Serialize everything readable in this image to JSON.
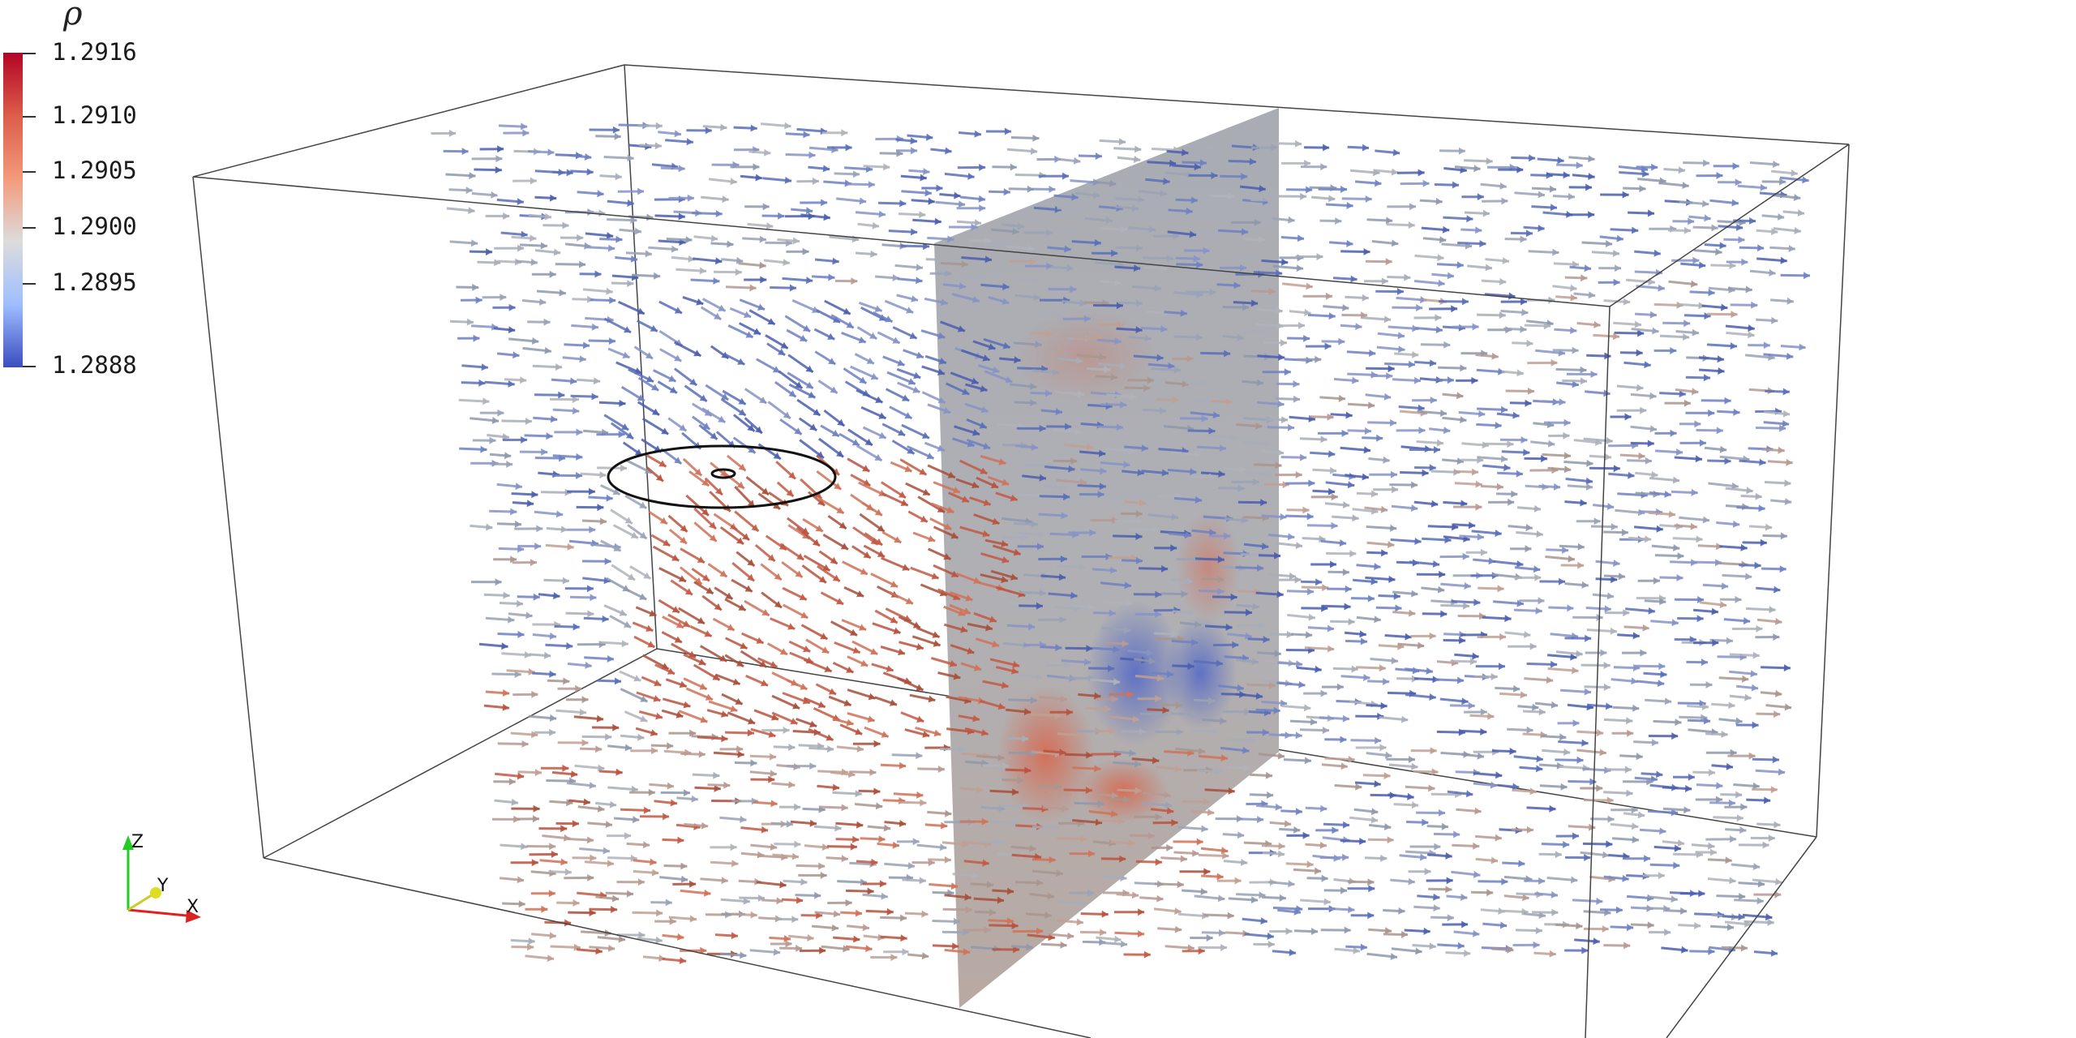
{
  "colorbar": {
    "title": "ρ",
    "labels": [
      "1.2916",
      "1.2910",
      "1.2905",
      "1.2900",
      "1.2895",
      "1.2888"
    ],
    "gradient": [
      "#b40426",
      "#dc5d4a",
      "#f49a7b",
      "#dddcdc",
      "#9ebeff",
      "#3b4cc0"
    ]
  },
  "orientation_axes": {
    "z": "Z",
    "y": "Y",
    "x": "X"
  },
  "colors": {
    "z_axis": "#22cc22",
    "y_axis": "#dddd22",
    "x_axis": "#dd2222"
  }
}
